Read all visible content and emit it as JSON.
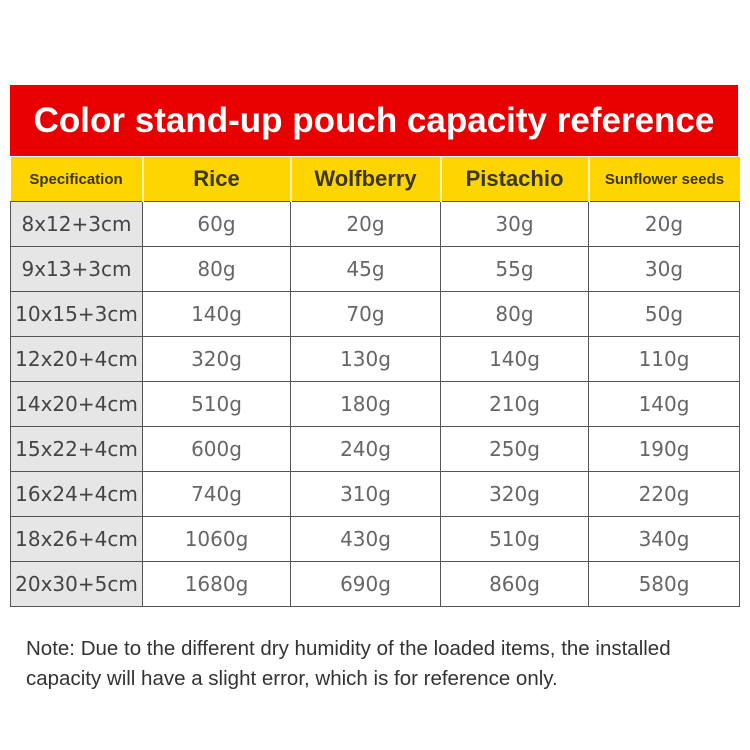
{
  "title": "Color stand-up pouch capacity reference",
  "colors": {
    "banner": "#e80000",
    "header": "#ffd500",
    "spec_column": "#e6e6e6"
  },
  "table": {
    "headers": [
      "Specification",
      "Rice",
      "Wolfberry",
      "Pistachio",
      "Sunflower seeds"
    ],
    "rows": [
      [
        "8x12+3cm",
        "60g",
        "20g",
        "30g",
        "20g"
      ],
      [
        "9x13+3cm",
        "80g",
        "45g",
        "55g",
        "30g"
      ],
      [
        "10x15+3cm",
        "140g",
        "70g",
        "80g",
        "50g"
      ],
      [
        "12x20+4cm",
        "320g",
        "130g",
        "140g",
        "110g"
      ],
      [
        "14x20+4cm",
        "510g",
        "180g",
        "210g",
        "140g"
      ],
      [
        "15x22+4cm",
        "600g",
        "240g",
        "250g",
        "190g"
      ],
      [
        "16x24+4cm",
        "740g",
        "310g",
        "320g",
        "220g"
      ],
      [
        "18x26+4cm",
        "1060g",
        "430g",
        "510g",
        "340g"
      ],
      [
        "20x30+5cm",
        "1680g",
        "690g",
        "860g",
        "580g"
      ]
    ]
  },
  "note": "Note: Due to the different dry humidity of the loaded items, the installed capacity will have a slight error, which is for reference only."
}
